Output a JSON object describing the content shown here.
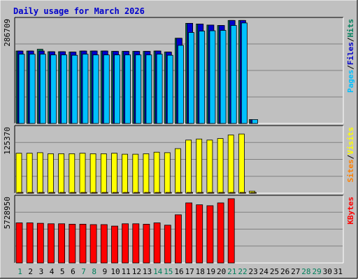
{
  "colors": {
    "background": "#c0c0c0",
    "panel": "#c0c0c0",
    "grid": "#808080",
    "title": "#0000cc",
    "hits": "#00805c",
    "files": "#0000cc",
    "pages": "#00c0ff",
    "visits": "#ffff00",
    "sites": "#ff8000",
    "kbytes": "#ff0000",
    "day_weekday": "#000000",
    "day_weekend": "#00805c"
  },
  "chart_data": {
    "type": "bar",
    "title": "Daily usage for March 2026",
    "days": [
      "1",
      "2",
      "3",
      "4",
      "5",
      "6",
      "7",
      "8",
      "9",
      "10",
      "11",
      "12",
      "13",
      "14",
      "15",
      "16",
      "17",
      "18",
      "19",
      "20",
      "21",
      "22",
      "23",
      "24",
      "25",
      "26",
      "27",
      "28",
      "29",
      "30",
      "31"
    ],
    "weekend_days": [
      "1",
      "7",
      "8",
      "14",
      "15",
      "21",
      "22",
      "28",
      "29"
    ],
    "panels": [
      {
        "id": "hits-files-pages",
        "max_label": "286709",
        "ymax": 286709,
        "legend": [
          {
            "text": "Hits",
            "color_key": "hits"
          },
          {
            "text": "Files",
            "color_key": "files"
          },
          {
            "text": "Pages",
            "color_key": "pages"
          }
        ],
        "series": [
          {
            "name": "Hits",
            "color_key": "hits",
            "values": [
              204000,
              204000,
              209000,
              202000,
              202000,
              201000,
              204000,
              204000,
              204000,
              203000,
              203000,
              203000,
              203000,
              204000,
              201000,
              240000,
              282000,
              280000,
              277000,
              276000,
              290000,
              290000,
              11000,
              0,
              0,
              0,
              0,
              0,
              0,
              0,
              0
            ]
          },
          {
            "name": "Files",
            "color_key": "files",
            "values": [
              204000,
              204000,
              204000,
              202000,
              202000,
              201000,
              204000,
              204000,
              204000,
              203000,
              203000,
              203000,
              203000,
              204000,
              201000,
              240000,
              282000,
              280000,
              277000,
              276000,
              290000,
              290000,
              11000,
              0,
              0,
              0,
              0,
              0,
              0,
              0,
              0
            ]
          },
          {
            "name": "Pages",
            "color_key": "pages",
            "values": [
              195000,
              195000,
              195000,
              193000,
              193000,
              192000,
              195000,
              193000,
              193000,
              193000,
              193000,
              193000,
              193000,
              195000,
              192000,
              220000,
              256000,
              260000,
              261000,
              262000,
              276000,
              283000,
              11000,
              0,
              0,
              0,
              0,
              0,
              0,
              0,
              0
            ]
          }
        ]
      },
      {
        "id": "visits-sites",
        "max_label": "125370",
        "ymax": 125370,
        "legend": [
          {
            "text": "Visits",
            "color_key": "visits"
          },
          {
            "text": "Sites",
            "color_key": "sites"
          }
        ],
        "series": [
          {
            "name": "Visits",
            "color_key": "visits",
            "values": [
              79000,
              79000,
              80000,
              78000,
              78000,
              78000,
              79000,
              78000,
              78000,
              79000,
              77000,
              77000,
              78000,
              81000,
              80000,
              88000,
              105000,
              107000,
              105000,
              108000,
              115000,
              117000,
              4000,
              0,
              0,
              0,
              0,
              0,
              0,
              0,
              0
            ]
          },
          {
            "name": "Sites",
            "color_key": "sites",
            "values": [
              1500,
              1500,
              1500,
              1500,
              1500,
              1500,
              1500,
              1500,
              1500,
              1500,
              1500,
              1500,
              1500,
              1500,
              1500,
              1500,
              1500,
              1500,
              1500,
              1500,
              1500,
              1500,
              500,
              0,
              0,
              0,
              0,
              0,
              0,
              0,
              0
            ]
          }
        ]
      },
      {
        "id": "kbytes",
        "max_label": "5728950",
        "ymax": 5728950,
        "legend": [
          {
            "text": "KBytes",
            "color_key": "kbytes"
          }
        ],
        "series": [
          {
            "name": "KBytes",
            "color_key": "kbytes",
            "values": [
              3620000,
              3620000,
              3580000,
              3540000,
              3540000,
              3500000,
              3500000,
              3460000,
              3460000,
              3330000,
              3540000,
              3540000,
              3500000,
              3620000,
              3410000,
              4350000,
              5420000,
              5250000,
              5170000,
              5420000,
              5800000,
              0,
              0,
              0,
              0,
              0,
              0,
              0,
              0,
              0,
              0
            ]
          }
        ]
      }
    ]
  }
}
